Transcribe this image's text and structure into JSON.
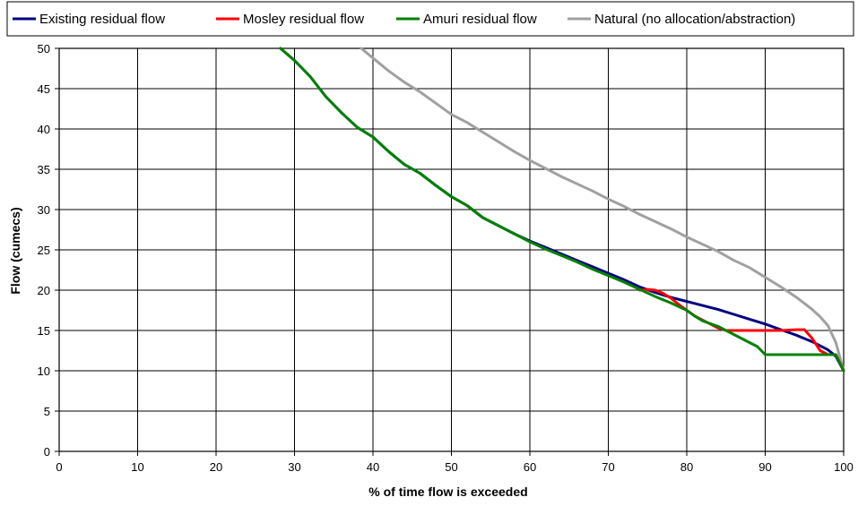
{
  "chart_data": {
    "type": "line",
    "xlabel": "% of time flow is exceeded",
    "ylabel": "Flow (cumecs)",
    "xlim": [
      0,
      100
    ],
    "ylim": [
      0,
      50
    ],
    "xticks": [
      0,
      10,
      20,
      30,
      40,
      50,
      60,
      70,
      80,
      90,
      100
    ],
    "yticks": [
      0,
      5,
      10,
      15,
      20,
      25,
      30,
      35,
      40,
      45,
      50
    ],
    "grid": true,
    "legend_position": "top",
    "series": [
      {
        "name": "Existing residual flow",
        "color": "#000080",
        "points": [
          [
            28.2,
            50
          ],
          [
            30,
            48.5
          ],
          [
            32,
            46.5
          ],
          [
            34,
            44
          ],
          [
            36,
            42
          ],
          [
            38,
            40.2
          ],
          [
            40,
            39
          ],
          [
            42,
            37.2
          ],
          [
            44,
            35.6
          ],
          [
            46,
            34.5
          ],
          [
            48,
            33
          ],
          [
            50,
            31.6
          ],
          [
            52,
            30.5
          ],
          [
            54,
            29
          ],
          [
            56,
            28
          ],
          [
            58,
            27
          ],
          [
            60,
            26.1
          ],
          [
            62,
            25.3
          ],
          [
            64,
            24.5
          ],
          [
            66,
            23.7
          ],
          [
            68,
            22.9
          ],
          [
            70,
            22.1
          ],
          [
            72,
            21.3
          ],
          [
            74,
            20.4
          ],
          [
            76,
            19.7
          ],
          [
            78,
            19.1
          ],
          [
            80,
            18.6
          ],
          [
            82,
            18.1
          ],
          [
            84,
            17.6
          ],
          [
            86,
            17
          ],
          [
            88,
            16.4
          ],
          [
            90,
            15.8
          ],
          [
            92,
            15.1
          ],
          [
            94,
            14.4
          ],
          [
            96,
            13.6
          ],
          [
            98,
            12.6
          ],
          [
            99,
            11.8
          ],
          [
            100,
            10
          ]
        ]
      },
      {
        "name": "Mosley residual flow",
        "color": "#ff0000",
        "points": [
          [
            74,
            20
          ],
          [
            75,
            20.1
          ],
          [
            76,
            20
          ],
          [
            77,
            19.6
          ],
          [
            78,
            19
          ],
          [
            79,
            18.2
          ],
          [
            80,
            17.5
          ],
          [
            81,
            16.8
          ],
          [
            82,
            16.3
          ],
          [
            83,
            15.8
          ],
          [
            84,
            15.3
          ],
          [
            85,
            15
          ],
          [
            86,
            15
          ],
          [
            88,
            15
          ],
          [
            90,
            15
          ],
          [
            92,
            15
          ],
          [
            94,
            15.1
          ],
          [
            95,
            15.1
          ],
          [
            96,
            14
          ],
          [
            97,
            12.5
          ],
          [
            98,
            12
          ],
          [
            99,
            12
          ],
          [
            100,
            10
          ]
        ]
      },
      {
        "name": "Amuri residual flow",
        "color": "#008000",
        "points": [
          [
            28.2,
            50
          ],
          [
            30,
            48.5
          ],
          [
            32,
            46.5
          ],
          [
            34,
            44
          ],
          [
            36,
            42
          ],
          [
            38,
            40.2
          ],
          [
            40,
            39
          ],
          [
            42,
            37.2
          ],
          [
            44,
            35.6
          ],
          [
            46,
            34.5
          ],
          [
            48,
            33
          ],
          [
            50,
            31.6
          ],
          [
            52,
            30.5
          ],
          [
            54,
            29
          ],
          [
            56,
            28
          ],
          [
            58,
            27
          ],
          [
            60,
            26
          ],
          [
            62,
            25.1
          ],
          [
            64,
            24.3
          ],
          [
            66,
            23.5
          ],
          [
            68,
            22.6
          ],
          [
            70,
            21.8
          ],
          [
            72,
            21
          ],
          [
            74,
            20.1
          ],
          [
            76,
            19.2
          ],
          [
            78,
            18.4
          ],
          [
            80,
            17.5
          ],
          [
            81,
            16.8
          ],
          [
            82,
            16.2
          ],
          [
            84,
            15.5
          ],
          [
            86,
            14.5
          ],
          [
            88,
            13.5
          ],
          [
            89,
            13
          ],
          [
            90,
            12
          ],
          [
            92,
            12
          ],
          [
            94,
            12
          ],
          [
            96,
            12
          ],
          [
            98,
            12
          ],
          [
            99,
            12
          ],
          [
            100,
            10
          ]
        ]
      },
      {
        "name": "Natural (no allocation/abstraction)",
        "color": "#a0a0a0",
        "points": [
          [
            38.5,
            50
          ],
          [
            40,
            48.8
          ],
          [
            42,
            47.2
          ],
          [
            44,
            45.8
          ],
          [
            46,
            44.6
          ],
          [
            48,
            43.2
          ],
          [
            50,
            41.8
          ],
          [
            52,
            40.8
          ],
          [
            54,
            39.6
          ],
          [
            56,
            38.4
          ],
          [
            58,
            37.2
          ],
          [
            60,
            36.1
          ],
          [
            62,
            35.1
          ],
          [
            64,
            34.1
          ],
          [
            66,
            33.2
          ],
          [
            68,
            32.3
          ],
          [
            70,
            31.3
          ],
          [
            72,
            30.4
          ],
          [
            74,
            29.4
          ],
          [
            76,
            28.5
          ],
          [
            78,
            27.6
          ],
          [
            80,
            26.6
          ],
          [
            82,
            25.7
          ],
          [
            84,
            24.8
          ],
          [
            86,
            23.7
          ],
          [
            88,
            22.8
          ],
          [
            90,
            21.6
          ],
          [
            92,
            20.4
          ],
          [
            94,
            19.1
          ],
          [
            96,
            17.6
          ],
          [
            97,
            16.7
          ],
          [
            98,
            15.6
          ],
          [
            99,
            13.5
          ],
          [
            100,
            10
          ]
        ]
      }
    ]
  }
}
